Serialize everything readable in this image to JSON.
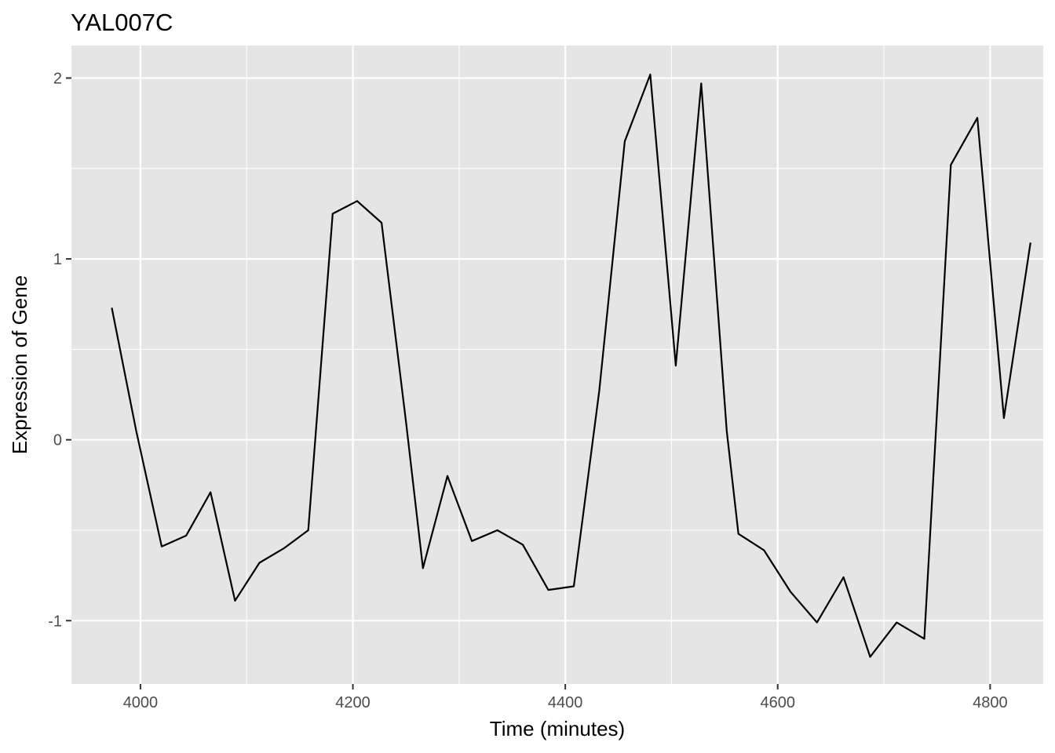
{
  "chart_data": {
    "type": "line",
    "title": "YAL007C",
    "xlabel": "Time (minutes)",
    "ylabel": "Expression of Gene",
    "xlim": [
      3935,
      4850
    ],
    "ylim": [
      -1.35,
      2.18
    ],
    "x_ticks": [
      4000,
      4200,
      4400,
      4600,
      4800
    ],
    "y_ticks": [
      -1,
      0,
      1,
      2
    ],
    "x_tick_labels": [
      "4000",
      "4200",
      "4400",
      "4600",
      "4800"
    ],
    "y_tick_labels": [
      "-1",
      "0",
      "1",
      "2"
    ],
    "grid": true,
    "legend": "none",
    "colors": {
      "panel": "#e5e5e5",
      "grid": "#ffffff",
      "line": "#000000",
      "tick_text": "#4d4d4d",
      "tick_mark": "#333333"
    },
    "series": [
      {
        "x": [
          3973,
          3996,
          4020,
          4043,
          4066,
          4089,
          4112,
          4135,
          4158,
          4181,
          4204,
          4227,
          4250,
          4266,
          4289,
          4312,
          4336,
          4360,
          4384,
          4408,
          4432,
          4456,
          4480,
          4504,
          4528,
          4552,
          4563,
          4587,
          4612,
          4637,
          4662,
          4687,
          4712,
          4738,
          4763,
          4788,
          4813,
          4838
        ],
        "y": [
          0.73,
          0.05,
          -0.59,
          -0.53,
          -0.29,
          -0.89,
          -0.68,
          -0.6,
          -0.5,
          1.25,
          1.32,
          1.2,
          0.1,
          -0.71,
          -0.2,
          -0.56,
          -0.5,
          -0.58,
          -0.83,
          -0.81,
          0.27,
          1.65,
          2.02,
          0.41,
          1.97,
          0.05,
          -0.52,
          -0.61,
          -0.84,
          -1.01,
          -0.76,
          -1.2,
          -1.01,
          -1.1,
          1.52,
          1.78,
          0.12,
          1.09
        ]
      }
    ]
  }
}
